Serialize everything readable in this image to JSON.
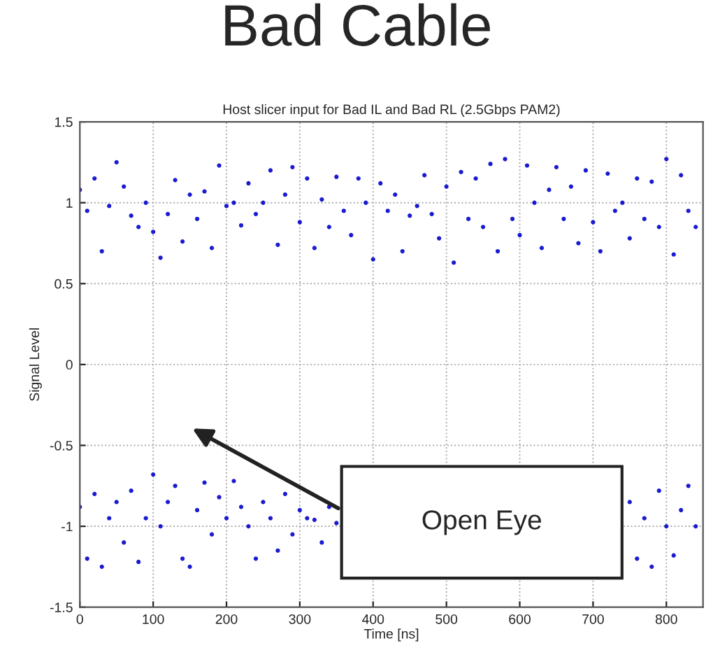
{
  "chart_data": {
    "type": "scatter",
    "title": "Bad Cable",
    "subtitle": "Host slicer input for Bad IL and Bad RL (2.5Gbps PAM2)",
    "xlabel": "Time [ns]",
    "ylabel": "Signal Level",
    "xlim": [
      0,
      850
    ],
    "xticks": [
      0,
      100,
      200,
      300,
      400,
      500,
      600,
      700,
      800
    ],
    "ylim": [
      -1.5,
      1.5
    ],
    "yticks": [
      -1.5,
      -1,
      -0.5,
      0,
      0.5,
      1,
      1.5
    ],
    "grid": true,
    "marker": "circle",
    "legend": false,
    "annotations": [
      "Open Eye"
    ],
    "series": [
      {
        "color": "#1a1ad0",
        "x": [
          0,
          10,
          20,
          30,
          40,
          50,
          60,
          70,
          80,
          90,
          100,
          110,
          120,
          130,
          140,
          150,
          160,
          170,
          180,
          190,
          200,
          210,
          220,
          230,
          240,
          250,
          260,
          270,
          280,
          290,
          300,
          310,
          320,
          330,
          340,
          350,
          360,
          370,
          380,
          390,
          400,
          410,
          420,
          430,
          440,
          450,
          460,
          470,
          480,
          490,
          500,
          510,
          520,
          530,
          540,
          550,
          560,
          570,
          580,
          590,
          600,
          610,
          620,
          630,
          640,
          650,
          660,
          670,
          680,
          690,
          700,
          710,
          720,
          730,
          740,
          750,
          760,
          770,
          780,
          790,
          800,
          810,
          820,
          830,
          840
        ],
        "values": [
          1.08,
          0.95,
          1.15,
          0.7,
          0.98,
          1.25,
          1.1,
          0.92,
          0.85,
          1.0,
          0.82,
          0.66,
          0.93,
          1.14,
          0.76,
          1.05,
          0.9,
          1.07,
          0.72,
          1.23,
          0.98,
          1.0,
          0.86,
          1.12,
          0.93,
          1.0,
          1.2,
          0.74,
          1.05,
          1.22,
          0.88,
          1.15,
          0.72,
          1.02,
          0.85,
          1.16,
          0.95,
          0.8,
          1.15,
          1.0,
          0.65,
          1.12,
          0.95,
          1.05,
          0.7,
          0.92,
          0.98,
          1.17,
          0.93,
          0.78,
          1.1,
          0.63,
          1.19,
          0.9,
          1.15,
          0.85,
          1.24,
          0.7,
          1.27,
          0.9,
          0.8,
          1.23,
          1.0,
          0.72,
          1.08,
          1.22,
          0.9,
          1.1,
          0.75,
          1.2,
          0.88,
          0.7,
          1.18,
          0.95,
          1.0,
          0.78,
          1.15,
          0.9,
          1.13,
          0.85,
          1.27,
          0.68,
          1.17,
          0.95,
          0.85
        ]
      },
      {
        "color": "#1a1ad0",
        "x": [
          0,
          10,
          20,
          30,
          40,
          50,
          60,
          70,
          80,
          90,
          100,
          110,
          120,
          130,
          140,
          150,
          160,
          170,
          180,
          190,
          200,
          210,
          220,
          230,
          240,
          250,
          260,
          270,
          280,
          290,
          300,
          310,
          320,
          330,
          340,
          350,
          750,
          760,
          770,
          780,
          790,
          800,
          810,
          820,
          830,
          840
        ],
        "values": [
          -0.88,
          -1.2,
          -0.8,
          -1.25,
          -0.95,
          -0.85,
          -1.1,
          -0.78,
          -1.22,
          -0.95,
          -0.68,
          -1.0,
          -0.85,
          -0.75,
          -1.2,
          -1.25,
          -0.9,
          -0.73,
          -1.05,
          -0.82,
          -0.95,
          -0.72,
          -0.88,
          -1.0,
          -1.2,
          -0.85,
          -0.95,
          -1.15,
          -0.8,
          -1.05,
          -0.9,
          -0.95,
          -0.96,
          -1.1,
          -0.88,
          -0.98,
          -0.85,
          -1.2,
          -0.95,
          -1.25,
          -0.78,
          -1.0,
          -1.18,
          -0.9,
          -0.75,
          -1.0
        ]
      }
    ]
  }
}
